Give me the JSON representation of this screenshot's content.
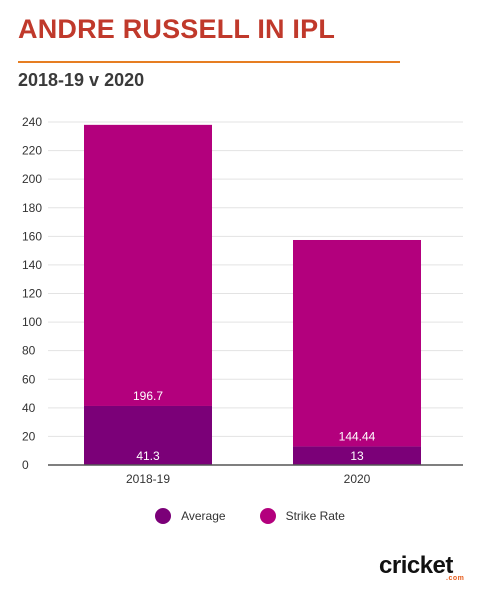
{
  "title": "ANDRE RUSSELL IN IPL",
  "subtitle": "2018-19 v 2020",
  "colors": {
    "title": "#c0392b",
    "rule": "#e67e22",
    "average": "#7b0078",
    "strike_rate": "#b3007d",
    "logo_accent": "#e65c1c"
  },
  "logo": {
    "text": "cricket",
    "sub": ".com"
  },
  "chart_data": {
    "type": "bar",
    "stacked": true,
    "categories": [
      "2018-19",
      "2020"
    ],
    "series": [
      {
        "name": "Average",
        "values": [
          41.3,
          13
        ]
      },
      {
        "name": "Strike Rate",
        "values": [
          196.7,
          144.44
        ]
      }
    ],
    "data_labels": [
      [
        "41.3",
        "13"
      ],
      [
        "196.7",
        "144.44"
      ]
    ],
    "ylim": [
      0,
      240
    ],
    "yticks": [
      0,
      20,
      40,
      60,
      80,
      100,
      120,
      140,
      160,
      180,
      200,
      220,
      240
    ],
    "grid": true,
    "legend": "bottom"
  }
}
